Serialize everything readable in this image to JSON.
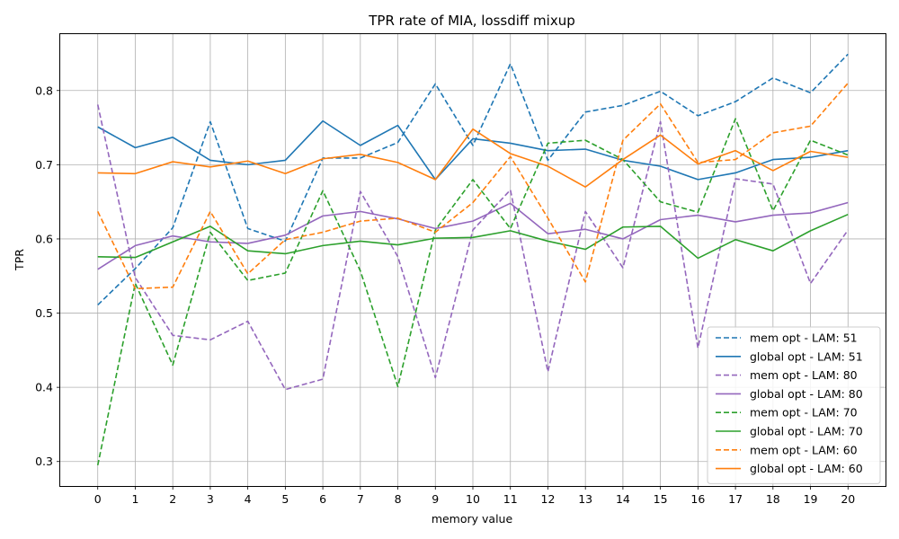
{
  "chart_data": {
    "type": "line",
    "title": "TPR rate of MIA, lossdiff mixup",
    "xlabel": "memory value",
    "ylabel": "TPR",
    "x": [
      0,
      1,
      2,
      3,
      4,
      5,
      6,
      7,
      8,
      9,
      10,
      11,
      12,
      13,
      14,
      15,
      16,
      17,
      18,
      19,
      20
    ],
    "xticks": [
      "0",
      "1",
      "2",
      "3",
      "4",
      "5",
      "6",
      "7",
      "8",
      "9",
      "10",
      "11",
      "12",
      "13",
      "14",
      "15",
      "16",
      "17",
      "18",
      "19",
      "20"
    ],
    "xlim": [
      -1,
      21
    ],
    "ylim": [
      0.267,
      0.876
    ],
    "yticks": [
      0.3,
      0.4,
      0.5,
      0.6,
      0.7,
      0.8
    ],
    "yticks_labels": [
      "0.3",
      "0.4",
      "0.5",
      "0.6",
      "0.7",
      "0.8"
    ],
    "grid": true,
    "legend_position": "lower-right",
    "series": [
      {
        "name": "mem opt - LAM: 51",
        "color": "#1f77b4",
        "style": "dashed",
        "values": [
          0.511,
          0.56,
          0.615,
          0.758,
          0.614,
          0.597,
          0.709,
          0.709,
          0.73,
          0.809,
          0.726,
          0.836,
          0.706,
          0.771,
          0.78,
          0.799,
          0.766,
          0.785,
          0.817,
          0.797,
          0.849
        ]
      },
      {
        "name": "global opt - LAM: 51",
        "color": "#1f77b4",
        "style": "solid",
        "values": [
          0.751,
          0.723,
          0.737,
          0.706,
          0.7,
          0.706,
          0.759,
          0.726,
          0.753,
          0.68,
          0.735,
          0.729,
          0.719,
          0.721,
          0.706,
          0.698,
          0.68,
          0.689,
          0.707,
          0.71,
          0.719
        ]
      },
      {
        "name": "mem opt - LAM: 80",
        "color": "#9467bd",
        "style": "dashed",
        "values": [
          0.781,
          0.548,
          0.47,
          0.464,
          0.489,
          0.397,
          0.411,
          0.664,
          0.576,
          0.413,
          0.612,
          0.666,
          0.421,
          0.637,
          0.561,
          0.758,
          0.453,
          0.681,
          0.674,
          0.54,
          0.612
        ]
      },
      {
        "name": "global opt - LAM: 80",
        "color": "#9467bd",
        "style": "solid",
        "values": [
          0.559,
          0.591,
          0.604,
          0.596,
          0.594,
          0.605,
          0.631,
          0.637,
          0.627,
          0.614,
          0.624,
          0.648,
          0.607,
          0.613,
          0.6,
          0.626,
          0.632,
          0.623,
          0.632,
          0.635,
          0.649
        ]
      },
      {
        "name": "mem opt - LAM: 70",
        "color": "#2ca02c",
        "style": "dashed",
        "values": [
          0.295,
          0.54,
          0.43,
          0.609,
          0.544,
          0.554,
          0.665,
          0.557,
          0.401,
          0.612,
          0.68,
          0.614,
          0.729,
          0.733,
          0.707,
          0.65,
          0.636,
          0.762,
          0.638,
          0.733,
          0.713
        ]
      },
      {
        "name": "global opt - LAM: 70",
        "color": "#2ca02c",
        "style": "solid",
        "values": [
          0.576,
          0.575,
          0.596,
          0.617,
          0.584,
          0.58,
          0.591,
          0.597,
          0.592,
          0.601,
          0.602,
          0.611,
          0.597,
          0.586,
          0.616,
          0.617,
          0.574,
          0.599,
          0.584,
          0.611,
          0.633
        ]
      },
      {
        "name": "mem opt - LAM: 60",
        "color": "#ff7f0e",
        "style": "dashed",
        "values": [
          0.637,
          0.533,
          0.535,
          0.637,
          0.553,
          0.599,
          0.609,
          0.624,
          0.628,
          0.609,
          0.649,
          0.711,
          0.628,
          0.542,
          0.733,
          0.782,
          0.703,
          0.707,
          0.743,
          0.752,
          0.81
        ]
      },
      {
        "name": "global opt - LAM: 60",
        "color": "#ff7f0e",
        "style": "solid",
        "values": [
          0.689,
          0.688,
          0.704,
          0.697,
          0.705,
          0.688,
          0.708,
          0.714,
          0.703,
          0.68,
          0.748,
          0.715,
          0.698,
          0.67,
          0.707,
          0.74,
          0.701,
          0.719,
          0.692,
          0.718,
          0.71
        ]
      }
    ]
  }
}
